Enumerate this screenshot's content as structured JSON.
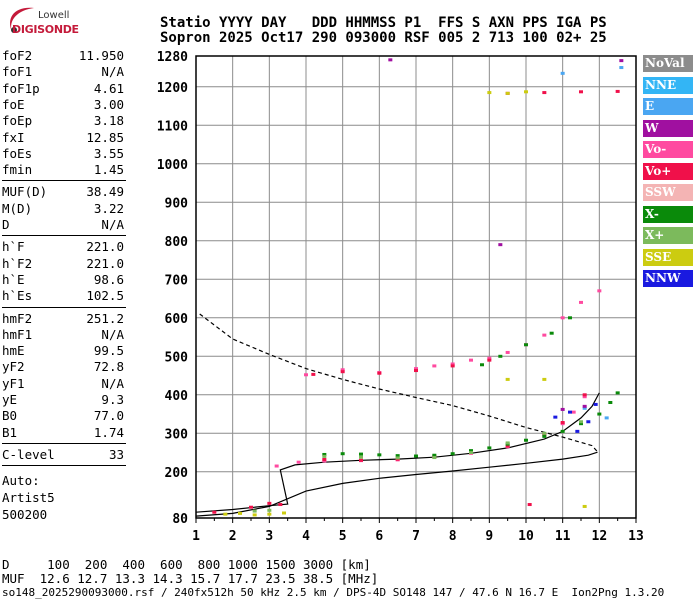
{
  "logo": {
    "top": "Lowell",
    "bottom": "DIGISONDE"
  },
  "header": {
    "line1": "Statio YYYY DAY   DDD HHMMSS P1  FFS S AXN PPS IGA PS",
    "line2": "Sopron 2025 Oct17 290 093000 RSF 005 2 713 100 02+ 25"
  },
  "params": {
    "group1": [
      {
        "label": "foF2",
        "value": "11.950"
      },
      {
        "label": "foF1",
        "value": "N/A"
      },
      {
        "label": "foF1p",
        "value": "4.61"
      },
      {
        "label": "foE",
        "value": "3.00"
      },
      {
        "label": "foEp",
        "value": "3.18"
      },
      {
        "label": "fxI",
        "value": "12.85"
      },
      {
        "label": "foEs",
        "value": "3.55"
      },
      {
        "label": "fmin",
        "value": "1.45"
      }
    ],
    "group2": [
      {
        "label": "MUF(D)",
        "value": "38.49"
      },
      {
        "label": "M(D)",
        "value": "3.22"
      },
      {
        "label": "D",
        "value": "N/A"
      }
    ],
    "group3": [
      {
        "label": "h`F",
        "value": "221.0"
      },
      {
        "label": "h`F2",
        "value": "221.0"
      },
      {
        "label": "h`E",
        "value": "98.6"
      },
      {
        "label": "h`Es",
        "value": "102.5"
      }
    ],
    "group4": [
      {
        "label": "hmF2",
        "value": "251.2"
      },
      {
        "label": "hmF1",
        "value": "N/A"
      },
      {
        "label": "hmE",
        "value": "99.5"
      },
      {
        "label": "yF2",
        "value": "72.8"
      },
      {
        "label": "yF1",
        "value": "N/A"
      },
      {
        "label": "yE",
        "value": "9.3"
      },
      {
        "label": "B0",
        "value": "77.0"
      },
      {
        "label": "B1",
        "value": "1.74"
      }
    ],
    "group5": [
      {
        "label": "C-level",
        "value": "33"
      }
    ]
  },
  "autoscaling": {
    "line1": "Auto:",
    "line2": "Artist5",
    "line3": "500200"
  },
  "bottom": {
    "d_line": "D     100  200  400  600  800 1000 1500 3000 [km]",
    "muf_line": "MUF  12.6 12.7 13.3 14.3 15.7 17.7 23.5 38.5 [MHz]",
    "footer": "so148_2025290093000.rsf / 240fx512h 50 kHz 2.5 km / DPS-4D SO148 147 / 47.6 N 16.7 E  Ion2Png 1.3.20"
  },
  "legend": [
    {
      "label": "NoVal",
      "color": "#8c8c8c"
    },
    {
      "label": "NNE",
      "color": "#33b5f5"
    },
    {
      "label": "E",
      "color": "#4aa6f2"
    },
    {
      "label": "W",
      "color": "#a010a0"
    },
    {
      "label": "Vo-",
      "color": "#ff4aa0"
    },
    {
      "label": "Vo+",
      "color": "#f0104a"
    },
    {
      "label": "SSW",
      "color": "#f4b4b4"
    },
    {
      "label": "X-",
      "color": "#0a8a0a"
    },
    {
      "label": "X+",
      "color": "#7cba5c"
    },
    {
      "label": "SSE",
      "color": "#cccc10"
    },
    {
      "label": "NNW",
      "color": "#1a1ae0"
    }
  ],
  "chart_data": {
    "type": "scatter",
    "xlim": [
      1,
      13
    ],
    "ylim": [
      80,
      1280
    ],
    "x_ticks": [
      "1",
      "2",
      "3",
      "4",
      "5",
      "6",
      "7",
      "8",
      "9",
      "10",
      "11",
      "12",
      "13"
    ],
    "y_ticks": [
      "80",
      "200",
      "300",
      "400",
      "500",
      "600",
      "700",
      "800",
      "900",
      "1000",
      "1100",
      "1200",
      "1280"
    ],
    "series": [
      {
        "name": "Vo-",
        "color": "#ff4aa0",
        "points": [
          [
            3.2,
            215
          ],
          [
            3.8,
            225
          ],
          [
            4.5,
            228
          ],
          [
            5.5,
            229
          ],
          [
            6.5,
            231
          ],
          [
            7.5,
            238
          ],
          [
            8.5,
            248
          ],
          [
            9.5,
            265
          ],
          [
            10.5,
            295
          ],
          [
            11,
            325
          ],
          [
            11.3,
            355
          ],
          [
            11.6,
            395
          ],
          [
            4.0,
            452
          ],
          [
            5.0,
            465
          ],
          [
            6.0,
            458
          ],
          [
            7.0,
            468
          ],
          [
            7.5,
            475
          ],
          [
            8.0,
            480
          ],
          [
            8.5,
            490
          ],
          [
            9.0,
            495
          ],
          [
            9.5,
            510
          ],
          [
            10.0,
            530
          ],
          [
            10.5,
            555
          ],
          [
            11.0,
            600
          ],
          [
            11.5,
            640
          ],
          [
            12,
            670
          ]
        ]
      },
      {
        "name": "Vo+",
        "color": "#f0104a",
        "points": [
          [
            1.5,
            95
          ],
          [
            2.5,
            108
          ],
          [
            3,
            118
          ],
          [
            3.3,
            115
          ],
          [
            4.5,
            232
          ],
          [
            5.5,
            230
          ],
          [
            6.5,
            233
          ],
          [
            7.5,
            240
          ],
          [
            8.5,
            250
          ],
          [
            9.5,
            267
          ],
          [
            10.5,
            298
          ],
          [
            11,
            328
          ],
          [
            11.6,
            400
          ],
          [
            4.2,
            453
          ],
          [
            5.0,
            460
          ],
          [
            6.0,
            456
          ],
          [
            7.0,
            463
          ],
          [
            8.0,
            475
          ],
          [
            9.0,
            490
          ],
          [
            9.5,
            1183
          ],
          [
            10.5,
            1185
          ],
          [
            11.5,
            1187
          ],
          [
            12.5,
            1188
          ],
          [
            10.1,
            115
          ]
        ]
      },
      {
        "name": "X-",
        "color": "#0a8a0a",
        "points": [
          [
            4.5,
            245
          ],
          [
            5,
            247
          ],
          [
            5.5,
            246
          ],
          [
            6,
            244
          ],
          [
            6.5,
            242
          ],
          [
            7,
            241
          ],
          [
            7.5,
            243
          ],
          [
            8,
            247
          ],
          [
            8.5,
            255
          ],
          [
            9,
            262
          ],
          [
            9.5,
            272
          ],
          [
            10,
            282
          ],
          [
            10.5,
            292
          ],
          [
            11,
            305
          ],
          [
            11.5,
            325
          ],
          [
            12,
            350
          ],
          [
            12.3,
            380
          ],
          [
            12.5,
            405
          ],
          [
            8.8,
            478
          ],
          [
            9.3,
            500
          ],
          [
            10,
            530
          ],
          [
            10.7,
            560
          ],
          [
            11.2,
            600
          ]
        ]
      },
      {
        "name": "X+",
        "color": "#7cba5c",
        "points": [
          [
            4.5,
            240
          ],
          [
            5.5,
            238
          ],
          [
            6.5,
            236
          ],
          [
            7.5,
            237
          ],
          [
            8.5,
            250
          ],
          [
            9.5,
            275
          ],
          [
            10.5,
            300
          ],
          [
            11.5,
            330
          ],
          [
            2.6,
            98
          ],
          [
            3.0,
            100
          ]
        ]
      },
      {
        "name": "SSE",
        "color": "#cccc10",
        "points": [
          [
            1.8,
            90
          ],
          [
            2.2,
            92
          ],
          [
            2.6,
            88
          ],
          [
            3.0,
            90
          ],
          [
            3.4,
            93
          ],
          [
            9.0,
            1185
          ],
          [
            9.5,
            1183
          ],
          [
            10,
            1187
          ],
          [
            9.5,
            440
          ],
          [
            10.5,
            440
          ],
          [
            11.6,
            110
          ]
        ]
      },
      {
        "name": "NNW",
        "color": "#1a1ae0",
        "points": [
          [
            11.2,
            355
          ],
          [
            11.7,
            330
          ],
          [
            11.4,
            305
          ],
          [
            10.8,
            342
          ],
          [
            11.9,
            375
          ]
        ]
      },
      {
        "name": "E",
        "color": "#4aa6f2",
        "points": [
          [
            11.6,
            365
          ],
          [
            12.2,
            340
          ],
          [
            12.6,
            1250
          ],
          [
            11.0,
            1235
          ]
        ]
      },
      {
        "name": "W",
        "color": "#a010a0",
        "points": [
          [
            11.0,
            362
          ],
          [
            11.6,
            370
          ],
          [
            6.3,
            1270
          ],
          [
            12.6,
            1268
          ],
          [
            9.3,
            790
          ]
        ]
      }
    ],
    "curves": [
      {
        "name": "virtual-height-trace",
        "style": "solid",
        "points": [
          [
            1.0,
            95
          ],
          [
            2.0,
            102
          ],
          [
            3.0,
            112
          ],
          [
            3.5,
            116
          ],
          [
            3.3,
            205
          ],
          [
            3.7,
            218
          ],
          [
            4.5,
            225
          ],
          [
            5.5,
            230
          ],
          [
            6.5,
            233
          ],
          [
            7.5,
            238
          ],
          [
            8.5,
            248
          ],
          [
            9.5,
            262
          ],
          [
            10.5,
            285
          ],
          [
            11,
            305
          ],
          [
            11.5,
            340
          ],
          [
            11.8,
            370
          ],
          [
            12.0,
            405
          ]
        ]
      },
      {
        "name": "true-height-profile",
        "style": "solid",
        "points": [
          [
            1.0,
            85
          ],
          [
            2.0,
            92
          ],
          [
            3.0,
            110
          ],
          [
            4.0,
            150
          ],
          [
            5.0,
            170
          ],
          [
            6.0,
            183
          ],
          [
            7.0,
            193
          ],
          [
            8.0,
            202
          ],
          [
            9.0,
            212
          ],
          [
            10.0,
            222
          ],
          [
            11.0,
            233
          ],
          [
            11.7,
            243
          ],
          [
            11.95,
            251
          ]
        ]
      },
      {
        "name": "electron-density-extrapolation",
        "style": "dashed",
        "points": [
          [
            1.1,
            610
          ],
          [
            2,
            545
          ],
          [
            3,
            505
          ],
          [
            4,
            468
          ],
          [
            5,
            440
          ],
          [
            6,
            415
          ],
          [
            7,
            393
          ],
          [
            8,
            372
          ],
          [
            9,
            345
          ],
          [
            10,
            315
          ],
          [
            11,
            290
          ],
          [
            11.8,
            268
          ],
          [
            11.95,
            252
          ]
        ]
      }
    ]
  }
}
